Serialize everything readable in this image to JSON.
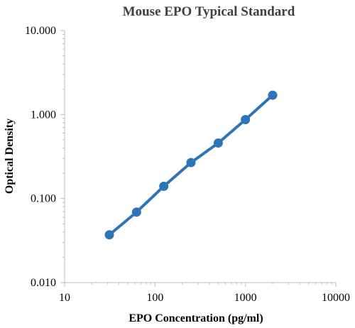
{
  "chart_data": {
    "type": "scatter",
    "title": "Mouse EPO Typical Standard",
    "xlabel": "EPO Concentration (pg/ml)",
    "ylabel": "Optical Density",
    "x_scale": "log",
    "y_scale": "log",
    "xlim": [
      10,
      10000
    ],
    "ylim": [
      0.01,
      10
    ],
    "x_ticks": [
      10,
      100,
      1000,
      10000
    ],
    "x_tick_labels": [
      "10",
      "100",
      "1000",
      "10000"
    ],
    "y_ticks": [
      0.01,
      0.1,
      1,
      10
    ],
    "y_tick_labels": [
      "0.010",
      "0.100",
      "1.000",
      "10.000"
    ],
    "grid": false,
    "legend": "none",
    "series": [
      {
        "x": [
          31.25,
          62.5,
          125,
          250,
          500,
          1000,
          2000
        ],
        "y": [
          0.037,
          0.069,
          0.14,
          0.268,
          0.458,
          0.87,
          1.7
        ],
        "color": "#2e75b6",
        "line": true,
        "markers": true
      }
    ]
  }
}
